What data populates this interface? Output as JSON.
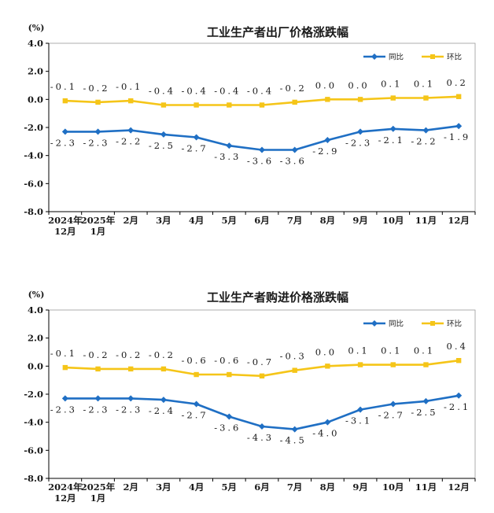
{
  "chart_data": [
    {
      "type": "line",
      "title": "工业生产者出厂价格涨跌幅",
      "unit_label": "(%)",
      "ylim": [
        -8.0,
        4.0
      ],
      "yticks": [
        "4.0",
        "2.0",
        "0.0",
        "-2.0",
        "-4.0",
        "-6.0",
        "-8.0"
      ],
      "ytick_values": [
        4,
        2,
        0,
        -2,
        -4,
        -6,
        -8
      ],
      "categories": [
        [
          "2024年",
          "12月"
        ],
        [
          "2025年",
          "1月"
        ],
        [
          "2月"
        ],
        [
          "3月"
        ],
        [
          "4月"
        ],
        [
          "5月"
        ],
        [
          "6月"
        ],
        [
          "7月"
        ],
        [
          "8月"
        ],
        [
          "9月"
        ],
        [
          "10月"
        ],
        [
          "11月"
        ],
        [
          "12月"
        ]
      ],
      "legend_position": "top-right",
      "series": [
        {
          "name": "同比",
          "color": "#1f6fc4",
          "marker": "diamond",
          "values": [
            -2.3,
            -2.3,
            -2.2,
            -2.5,
            -2.7,
            -3.3,
            -3.6,
            -3.6,
            -2.9,
            -2.3,
            -2.1,
            -2.2,
            -1.9
          ],
          "labels": [
            "-2.3",
            "-2.3",
            "-2.2",
            "-2.5",
            "-2.7",
            "-3.3",
            "-3.6",
            "-3.6",
            "-2.9",
            "-2.3",
            "-2.1",
            "-2.2",
            "-1.9"
          ]
        },
        {
          "name": "环比",
          "color": "#f5c518",
          "marker": "square",
          "values": [
            -0.1,
            -0.2,
            -0.1,
            -0.4,
            -0.4,
            -0.4,
            -0.4,
            -0.2,
            0.0,
            0.0,
            0.1,
            0.1,
            0.2
          ],
          "labels": [
            "-0.1",
            "-0.2",
            "-0.1",
            "-0.4",
            "-0.4",
            "-0.4",
            "-0.4",
            "-0.2",
            "0.0",
            "0.0",
            "0.1",
            "0.1",
            "0.2"
          ]
        }
      ]
    },
    {
      "type": "line",
      "title": "工业生产者购进价格涨跌幅",
      "unit_label": "(%)",
      "ylim": [
        -8.0,
        4.0
      ],
      "yticks": [
        "4.0",
        "2.0",
        "0.0",
        "-2.0",
        "-4.0",
        "-6.0",
        "-8.0"
      ],
      "ytick_values": [
        4,
        2,
        0,
        -2,
        -4,
        -6,
        -8
      ],
      "categories": [
        [
          "2024年",
          "12月"
        ],
        [
          "2025年",
          "1月"
        ],
        [
          "2月"
        ],
        [
          "3月"
        ],
        [
          "4月"
        ],
        [
          "5月"
        ],
        [
          "6月"
        ],
        [
          "7月"
        ],
        [
          "8月"
        ],
        [
          "9月"
        ],
        [
          "10月"
        ],
        [
          "11月"
        ],
        [
          "12月"
        ]
      ],
      "legend_position": "top-right",
      "series": [
        {
          "name": "同比",
          "color": "#1f6fc4",
          "marker": "diamond",
          "values": [
            -2.3,
            -2.3,
            -2.3,
            -2.4,
            -2.7,
            -3.6,
            -4.3,
            -4.5,
            -4.0,
            -3.1,
            -2.7,
            -2.5,
            -2.1
          ],
          "labels": [
            "-2.3",
            "-2.3",
            "-2.3",
            "-2.4",
            "-2.7",
            "-3.6",
            "-4.3",
            "-4.5",
            "-4.0",
            "-3.1",
            "-2.7",
            "-2.5",
            "-2.1"
          ]
        },
        {
          "name": "环比",
          "color": "#f5c518",
          "marker": "square",
          "values": [
            -0.1,
            -0.2,
            -0.2,
            -0.2,
            -0.6,
            -0.6,
            -0.7,
            -0.3,
            0.0,
            0.1,
            0.1,
            0.1,
            0.4
          ],
          "labels": [
            "-0.1",
            "-0.2",
            "-0.2",
            "-0.2",
            "-0.6",
            "-0.6",
            "-0.7",
            "-0.3",
            "0.0",
            "0.1",
            "0.1",
            "0.1",
            "0.4"
          ]
        }
      ]
    }
  ]
}
